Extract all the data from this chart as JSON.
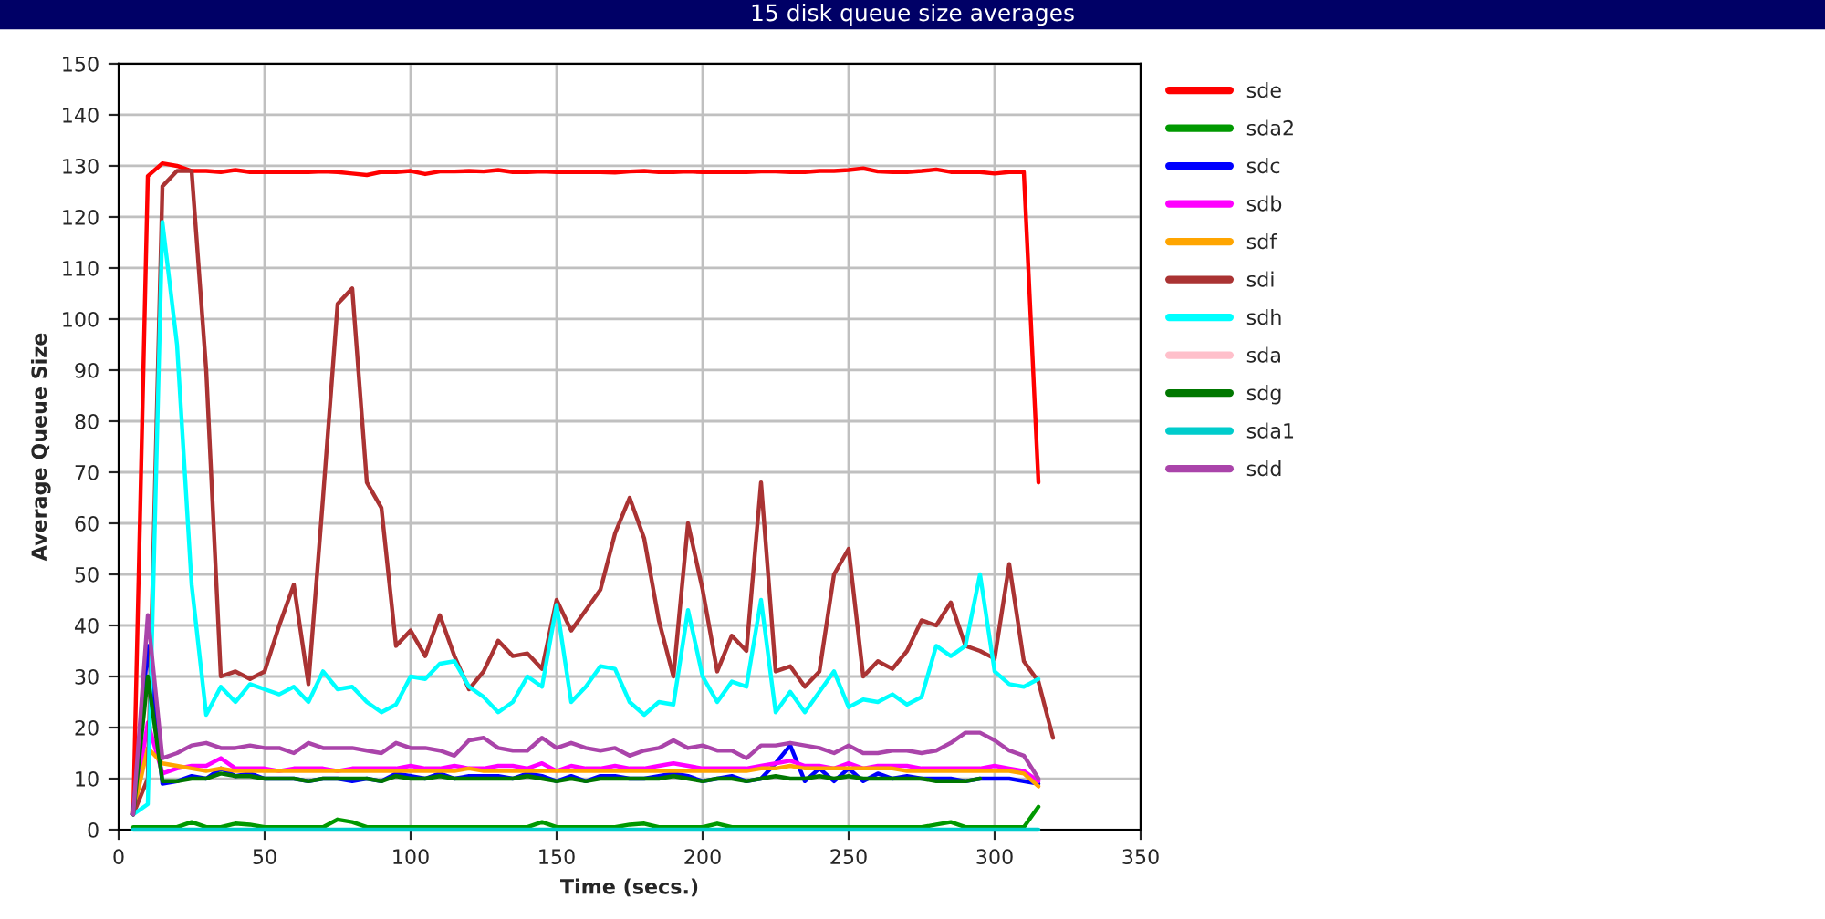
{
  "chart_data": {
    "type": "line",
    "title": "15 disk queue size averages",
    "xlabel": "Time (secs.)",
    "ylabel": "Average Queue Size",
    "x": [
      5,
      10,
      15,
      20,
      25,
      30,
      35,
      40,
      45,
      50,
      55,
      60,
      65,
      70,
      75,
      80,
      85,
      90,
      95,
      100,
      105,
      110,
      115,
      120,
      125,
      130,
      135,
      140,
      145,
      150,
      155,
      160,
      165,
      170,
      175,
      180,
      185,
      190,
      195,
      200,
      205,
      210,
      215,
      220,
      225,
      230,
      235,
      240,
      245,
      250,
      255,
      260,
      265,
      270,
      275,
      280,
      285,
      290,
      295,
      300,
      305,
      310,
      315
    ],
    "xlim": [
      0,
      350
    ],
    "xticks": [
      0,
      50,
      100,
      150,
      200,
      250,
      300,
      350
    ],
    "ylim": [
      0,
      150
    ],
    "yticks": [
      0,
      10,
      20,
      30,
      40,
      50,
      60,
      70,
      80,
      90,
      100,
      110,
      120,
      130,
      140,
      150
    ],
    "grid": true,
    "legend": "right",
    "marker": "none",
    "line_style": "solid",
    "series": [
      {
        "name": "sde",
        "color": "#ff0000",
        "values": [
          3,
          128,
          130.5,
          130,
          129,
          129,
          128.8,
          129.2,
          128.8,
          128.8,
          128.8,
          128.8,
          128.8,
          128.9,
          128.8,
          128.5,
          128.2,
          128.8,
          128.8,
          129,
          128.4,
          128.9,
          128.9,
          129,
          128.9,
          129.2,
          128.8,
          128.8,
          128.9,
          128.8,
          128.8,
          128.8,
          128.8,
          128.7,
          128.9,
          129,
          128.8,
          128.8,
          128.9,
          128.8,
          128.8,
          128.8,
          128.8,
          128.9,
          128.9,
          128.8,
          128.8,
          129,
          129,
          129.2,
          129.5,
          128.9,
          128.8,
          128.8,
          129,
          129.3,
          128.8,
          128.8,
          128.8,
          128.5,
          128.8,
          128.8,
          68
        ]
      },
      {
        "name": "sda2",
        "color": "#009900",
        "values": [
          0.5,
          0.5,
          0.5,
          0.5,
          1.5,
          0.5,
          0.5,
          1.2,
          1,
          0.5,
          0.5,
          0.5,
          0.5,
          0.5,
          2,
          1.5,
          0.5,
          0.5,
          0.5,
          0.5,
          0.5,
          0.5,
          0.5,
          0.5,
          0.5,
          0.5,
          0.5,
          0.5,
          1.5,
          0.5,
          0.5,
          0.5,
          0.5,
          0.5,
          1,
          1.2,
          0.5,
          0.5,
          0.5,
          0.5,
          1.2,
          0.5,
          0.5,
          0.5,
          0.5,
          0.5,
          0.5,
          0.5,
          0.5,
          0.5,
          0.5,
          0.5,
          0.5,
          0.5,
          0.5,
          1,
          1.5,
          0.5,
          0.5,
          0.5,
          0.5,
          0.5,
          4.5
        ]
      },
      {
        "name": "sdc",
        "color": "#0000ff",
        "values": [
          3,
          36,
          9,
          9.5,
          10.5,
          10,
          12,
          10.5,
          11,
          10,
          10,
          10,
          9.5,
          10,
          10,
          9.5,
          10,
          9.5,
          11,
          10.5,
          10,
          11,
          10,
          10.5,
          10.5,
          10.5,
          10,
          11,
          10.5,
          9.5,
          10.5,
          9.5,
          10.5,
          10.5,
          10,
          10,
          10.5,
          11,
          10.5,
          9.5,
          10,
          10.5,
          9.5,
          10,
          13,
          16.5,
          9.5,
          12,
          9.5,
          12,
          9.5,
          11,
          10,
          10.5,
          10,
          10,
          10,
          9.5,
          10,
          10,
          10,
          9.5,
          9
        ]
      },
      {
        "name": "sdb",
        "color": "#ff00ff",
        "values": [
          3,
          21,
          11,
          12,
          12.5,
          12.5,
          14,
          12,
          12,
          12,
          11.5,
          12,
          12,
          12,
          11.5,
          12,
          12,
          12,
          12,
          12.5,
          12,
          12,
          12.5,
          12,
          12,
          12.5,
          12.5,
          12,
          13,
          11.5,
          12.5,
          12,
          12,
          12.5,
          12,
          12,
          12.5,
          13,
          12.5,
          12,
          12,
          12,
          12,
          12.5,
          13,
          13.5,
          12.5,
          12.5,
          12,
          13,
          12,
          12.5,
          12.5,
          12.5,
          12,
          12,
          12,
          12,
          12,
          12.5,
          12,
          11.5,
          9.5
        ]
      },
      {
        "name": "sdf",
        "color": "#ffa500",
        "values": [
          3.5,
          16,
          13,
          12.5,
          12,
          11.5,
          12,
          11.5,
          11.5,
          11.5,
          11.5,
          11.5,
          11.5,
          11.5,
          11.5,
          11.5,
          11.5,
          11.5,
          11.5,
          11.5,
          11.5,
          11.5,
          11.5,
          12,
          11.5,
          11.5,
          11.5,
          11.5,
          11.5,
          11.5,
          11.5,
          11.5,
          11.5,
          11.5,
          11.5,
          11.5,
          11.5,
          11.5,
          11.5,
          11.5,
          11.5,
          11.5,
          11.5,
          12,
          12,
          12.5,
          12,
          12,
          12,
          12,
          12,
          12,
          12,
          11.5,
          11.5,
          11.5,
          11.5,
          11.5,
          11.5,
          11.5,
          11.5,
          11,
          8.5
        ]
      },
      {
        "name": "sdi",
        "color": "#aa3333",
        "x": [
          5,
          10,
          15,
          20,
          25,
          30,
          35,
          40,
          45,
          50,
          55,
          60,
          65,
          70,
          75,
          80,
          85,
          90,
          95,
          100,
          105,
          110,
          115,
          120,
          125,
          130,
          135,
          140,
          145,
          150,
          155,
          160,
          165,
          170,
          175,
          180,
          185,
          190,
          195,
          200,
          205,
          210,
          215,
          220,
          225,
          230,
          235,
          240,
          245,
          250,
          255,
          260,
          265,
          270,
          275,
          280,
          285,
          290,
          295,
          300,
          305,
          310,
          315,
          320
        ],
        "values": [
          3,
          10,
          126,
          129,
          129,
          90,
          30,
          31,
          29.5,
          31,
          40,
          48,
          28.5,
          65,
          103,
          106,
          68,
          63,
          36,
          39,
          34,
          42,
          34,
          27.5,
          31,
          37,
          34,
          34.5,
          31.5,
          45,
          39,
          43,
          47,
          58,
          65,
          57,
          41,
          30,
          60,
          47,
          31,
          38,
          35,
          68,
          31,
          32,
          28,
          31,
          50,
          55,
          30,
          33,
          31.5,
          35,
          41,
          40,
          44.5,
          36,
          35,
          33.5,
          52,
          33,
          29,
          18
        ]
      },
      {
        "name": "sdh",
        "color": "#00ffff",
        "values": [
          3,
          5,
          119,
          95,
          48,
          22.5,
          28,
          25,
          28.5,
          27.5,
          26.5,
          28,
          25,
          31,
          27.5,
          28,
          25,
          23,
          24.5,
          30,
          29.5,
          32.5,
          33,
          28,
          26,
          23,
          25,
          30,
          28,
          44,
          25,
          28,
          32,
          31.5,
          25,
          22.5,
          25,
          24.5,
          43,
          30,
          25,
          29,
          28,
          45,
          23,
          27,
          23,
          27,
          31,
          24,
          25.5,
          25,
          26.5,
          24.5,
          26,
          36,
          34,
          36,
          50,
          31,
          28.5,
          28,
          29.5
        ]
      },
      {
        "name": "sda",
        "color": "#ffc0cb",
        "values": [
          null,
          null,
          null,
          null,
          null,
          null,
          null,
          null,
          null,
          null,
          null,
          null,
          null,
          null,
          null,
          null,
          null,
          null,
          null,
          null,
          null,
          null,
          null,
          null,
          null,
          null,
          null,
          null,
          null,
          null,
          null,
          null,
          null,
          null,
          null,
          null,
          null,
          null,
          null,
          null,
          null,
          null,
          null,
          null,
          null,
          null,
          null,
          null,
          null,
          null,
          null,
          null,
          null,
          null,
          null,
          null,
          null,
          null,
          null,
          null,
          null,
          null,
          null
        ]
      },
      {
        "name": "sdg",
        "color": "#007700",
        "values": [
          3,
          30,
          9.5,
          9.5,
          10,
          10,
          11,
          10.5,
          10.5,
          10,
          10,
          10,
          9.5,
          10,
          10,
          10,
          10,
          9.5,
          10.5,
          10,
          10,
          10.5,
          10,
          10,
          10,
          10,
          10,
          10.5,
          10,
          9.5,
          10,
          9.5,
          10,
          10,
          10,
          10,
          10,
          10.5,
          10,
          9.5,
          10,
          10,
          9.5,
          10,
          10.5,
          10,
          10,
          10.5,
          10,
          10.5,
          10,
          10,
          10,
          10,
          10,
          9.5,
          9.5,
          9.5,
          10,
          null,
          null,
          null,
          null
        ]
      },
      {
        "name": "sda1",
        "color": "#00cccc",
        "values": [
          0,
          0,
          0,
          0,
          0,
          0,
          0,
          0,
          0,
          0,
          0,
          0,
          0,
          0,
          0,
          0,
          0,
          0,
          0,
          0,
          0,
          0,
          0,
          0,
          0,
          0,
          0,
          0,
          0,
          0,
          0,
          0,
          0,
          0,
          0,
          0,
          0,
          0,
          0,
          0,
          0,
          0,
          0,
          0,
          0,
          0,
          0,
          0,
          0,
          0,
          0,
          0,
          0,
          0,
          0,
          0,
          0,
          0,
          0,
          0,
          0,
          0,
          0
        ]
      },
      {
        "name": "sdd",
        "color": "#aa44aa",
        "values": [
          3,
          42,
          14,
          15,
          16.5,
          17,
          16,
          16,
          16.5,
          16,
          16,
          15,
          17,
          16,
          16,
          16,
          15.5,
          15,
          17,
          16,
          16,
          15.5,
          14.5,
          17.5,
          18,
          16,
          15.5,
          15.5,
          18,
          16,
          17,
          16,
          15.5,
          16,
          14.5,
          15.5,
          16,
          17.5,
          16,
          16.5,
          15.5,
          15.5,
          14,
          16.5,
          16.5,
          17,
          16.5,
          16,
          15,
          16.5,
          15,
          15,
          15.5,
          15.5,
          15,
          15.5,
          17,
          19,
          19,
          17.5,
          15.5,
          14.5,
          10
        ]
      }
    ]
  }
}
